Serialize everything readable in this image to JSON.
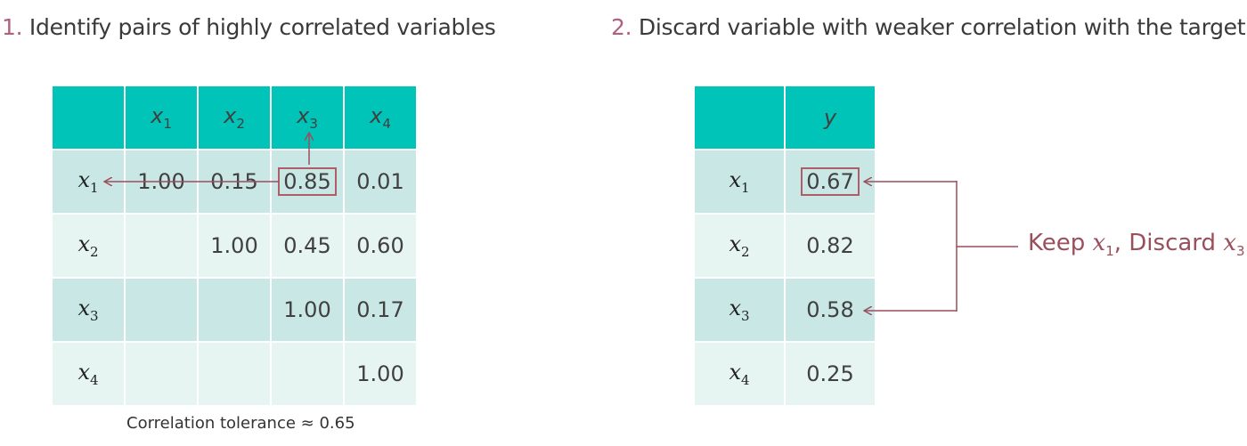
{
  "step1": {
    "num": "1.",
    "text": "Identify pairs of highly correlated variables"
  },
  "step2": {
    "num": "2.",
    "text": "Discard variable with weaker correlation with the target"
  },
  "corr_table": {
    "columns": [
      "x1",
      "x2",
      "x3",
      "x4"
    ],
    "rows": [
      {
        "label": "x1",
        "values": [
          "1.00",
          "0.15",
          "0.85",
          "0.01"
        ]
      },
      {
        "label": "x2",
        "values": [
          "",
          "1.00",
          "0.45",
          "0.60"
        ]
      },
      {
        "label": "x3",
        "values": [
          "",
          "",
          "1.00",
          "0.17"
        ]
      },
      {
        "label": "x4",
        "values": [
          "",
          "",
          "",
          "1.00"
        ]
      }
    ]
  },
  "tolerance_note": "Correlation tolerance ≈ 0.65",
  "target_table": {
    "column": "y",
    "rows": [
      {
        "label": "x1",
        "value": "0.67"
      },
      {
        "label": "x2",
        "value": "0.82"
      },
      {
        "label": "x3",
        "value": "0.58"
      },
      {
        "label": "x4",
        "value": "0.25"
      }
    ]
  },
  "decision": {
    "keep_word": "Keep",
    "keep_var": "x",
    "keep_sub": "1",
    "discard_word": "Discard",
    "discard_var": "x",
    "discard_sub": "3"
  },
  "colors": {
    "header": "#00c4b8",
    "row_dark": "#c9e7e4",
    "row_light": "#e6f4f2",
    "accent": "#b05d6a"
  }
}
